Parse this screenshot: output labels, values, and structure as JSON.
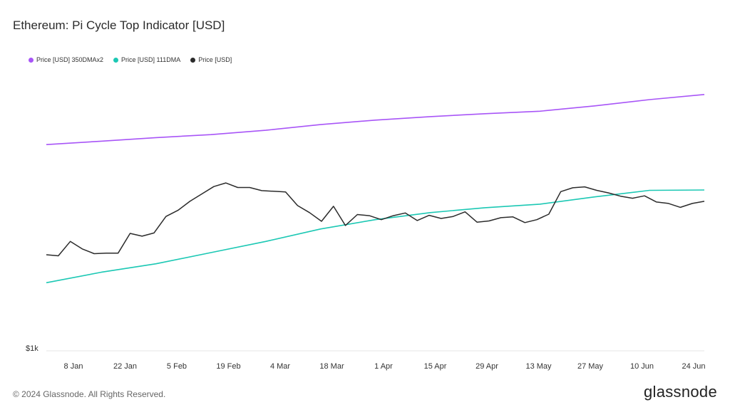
{
  "chart_data": {
    "type": "line",
    "title": "Ethereum: Pi Cycle Top Indicator [USD]",
    "y_tick": "$1k",
    "x_ticks": [
      "8 Jan",
      "22 Jan",
      "5 Feb",
      "19 Feb",
      "4 Mar",
      "18 Mar",
      "1 Apr",
      "15 Apr",
      "29 Apr",
      "13 May",
      "27 May",
      "10 Jun",
      "24 Jun"
    ],
    "series": [
      {
        "name": "Price [USD] 350DMAx2",
        "color": "#a855f7",
        "values": [
          5540,
          5700,
          5870,
          6020,
          6240,
          6540,
          6790,
          6990,
          7160,
          7310,
          7640,
          8050,
          8400
        ]
      },
      {
        "name": "Price [USD] 111DMA",
        "color": "#1cc8b4",
        "values": [
          1760,
          1920,
          2060,
          2260,
          2480,
          2750,
          2970,
          3150,
          3280,
          3380,
          3590,
          3790,
          3800
        ]
      },
      {
        "name": "Price [USD]",
        "color": "#2b2b2b",
        "values": [
          2220,
          2200,
          2480,
          2330,
          2240,
          2250,
          2250,
          2650,
          2590,
          2660,
          3050,
          3210,
          3460,
          3680,
          3910,
          4030,
          3880,
          3880,
          3780,
          3760,
          3740,
          3340,
          3150,
          2930,
          3320,
          2830,
          3100,
          3070,
          2970,
          3070,
          3140,
          2950,
          3080,
          3000,
          3050,
          3170,
          2910,
          2940,
          3020,
          3040,
          2900,
          2970,
          3110,
          3750,
          3870,
          3900,
          3790,
          3710,
          3610,
          3550,
          3620,
          3440,
          3400,
          3290,
          3400,
          3460
        ]
      }
    ]
  },
  "footer": "© 2024 Glassnode. All Rights Reserved.",
  "logo": "glassnode"
}
